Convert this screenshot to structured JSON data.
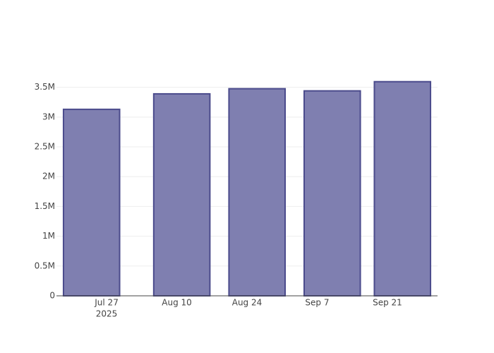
{
  "chart_data": {
    "type": "bar",
    "x": [
      "2025-07-24",
      "2025-08-11",
      "2025-08-26",
      "2025-09-10",
      "2025-09-24"
    ],
    "values": [
      3130000,
      3390000,
      3476000,
      3440000,
      3594000
    ],
    "color": "#7f7fb0",
    "line_color": "#4b4b8c",
    "xlim": [
      "2025-07-17",
      "2025-10-01"
    ],
    "xticks": [
      {
        "value": "2025-07-27",
        "label": "Jul 27"
      },
      {
        "value": "2025-08-10",
        "label": "Aug 10"
      },
      {
        "value": "2025-08-24",
        "label": "Aug 24"
      },
      {
        "value": "2025-09-07",
        "label": "Sep 7"
      },
      {
        "value": "2025-09-21",
        "label": "Sep 21"
      }
    ],
    "x_year_label": "2025",
    "ylim": [
      0,
      3780000
    ],
    "yticks": [
      0,
      {
        "value": 500000,
        "label": "0.5M"
      },
      {
        "value": 1000000,
        "label": "1M"
      },
      {
        "value": 1500000,
        "label": "1.5M"
      },
      {
        "value": 2000000,
        "label": "2M"
      },
      {
        "value": 2500000,
        "label": "2.5M"
      },
      {
        "value": 3000000,
        "label": "3M"
      },
      {
        "value": 3500000,
        "label": "3.5M"
      }
    ],
    "grid": true
  }
}
